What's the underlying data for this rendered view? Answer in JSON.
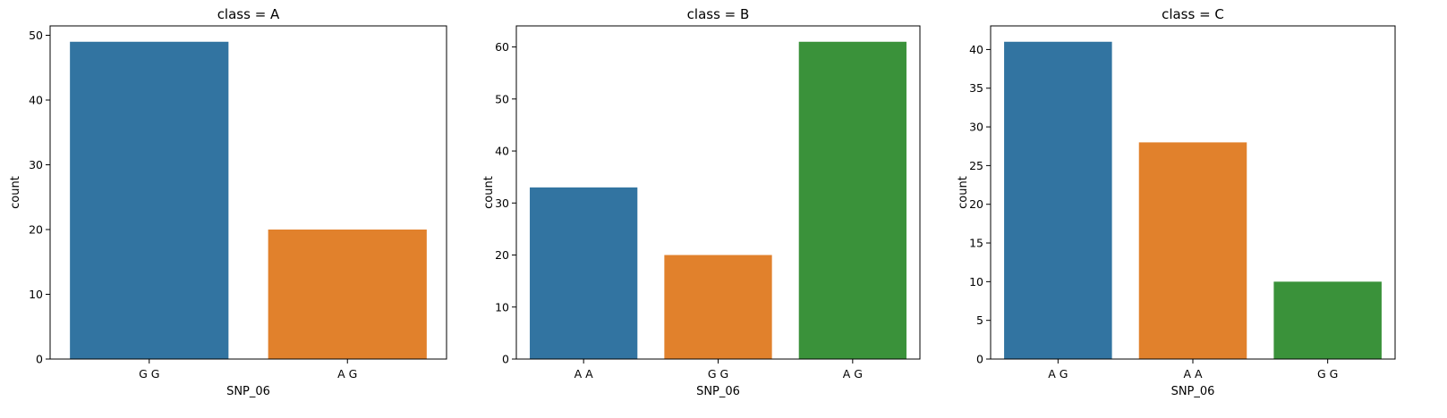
{
  "chart_data": [
    {
      "type": "bar",
      "title": "class = A",
      "xlabel": "SNP_06",
      "ylabel": "count",
      "categories": [
        "G G",
        "A G"
      ],
      "values": [
        49,
        20
      ],
      "colors": [
        "#3274a1",
        "#e1812c"
      ],
      "ylim": [
        0,
        51.45
      ],
      "yticks": [
        0,
        10,
        20,
        30,
        40,
        50
      ],
      "grid": false
    },
    {
      "type": "bar",
      "title": "class = B",
      "xlabel": "SNP_06",
      "ylabel": "count",
      "categories": [
        "A A",
        "G G",
        "A G"
      ],
      "values": [
        33,
        20,
        61
      ],
      "colors": [
        "#3274a1",
        "#e1812c",
        "#3a923a"
      ],
      "ylim": [
        0,
        64.05
      ],
      "yticks": [
        0,
        10,
        20,
        30,
        40,
        50,
        60
      ],
      "grid": false
    },
    {
      "type": "bar",
      "title": "class = C",
      "xlabel": "SNP_06",
      "ylabel": "count",
      "categories": [
        "A G",
        "A A",
        "G G"
      ],
      "values": [
        41,
        28,
        10
      ],
      "colors": [
        "#3274a1",
        "#e1812c",
        "#3a923a"
      ],
      "ylim": [
        0,
        43.05
      ],
      "yticks": [
        0,
        5,
        10,
        15,
        20,
        25,
        30,
        35,
        40
      ],
      "grid": false
    }
  ]
}
